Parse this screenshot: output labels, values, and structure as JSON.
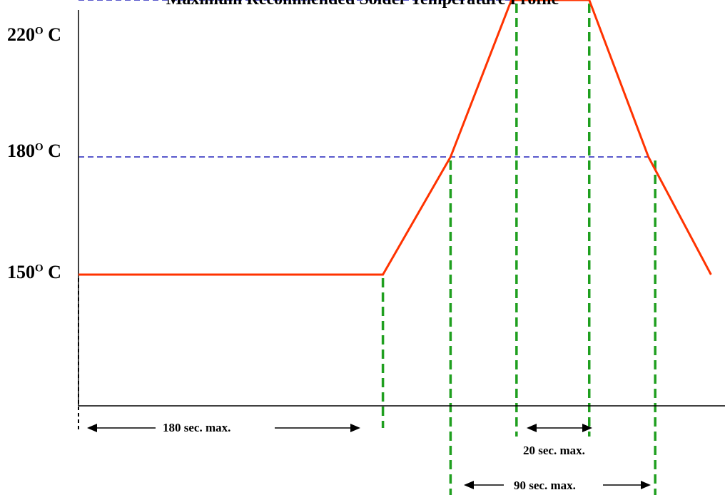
{
  "chart_data": {
    "type": "line",
    "title": "Maximum Recommended Solder Temperature Profile",
    "xlabel": "",
    "ylabel": "",
    "ylim": [
      110,
      225
    ],
    "y_ticks": [
      {
        "value": 150,
        "label": "150",
        "sup": "O",
        "unit": "C"
      },
      {
        "value": 180,
        "label": "180",
        "sup": "O",
        "unit": "C"
      },
      {
        "value": 220,
        "label": "220",
        "sup": "O",
        "unit": "C"
      }
    ],
    "series": [
      {
        "points": [
          [
            0,
            150
          ],
          [
            180,
            150
          ],
          [
            220,
            180
          ],
          [
            256,
            220
          ],
          [
            302,
            220
          ],
          [
            337,
            180
          ],
          [
            374,
            150
          ]
        ]
      }
    ],
    "reference_lines": [
      180,
      220
    ],
    "durations": [
      {
        "label": "180 sec. max.",
        "from": 0,
        "to": 180
      },
      {
        "label": "20 sec. max.",
        "from": 260,
        "to": 302
      },
      {
        "label": "90 sec. max.",
        "from": 222,
        "to": 340
      }
    ],
    "colors": {
      "profile": "#ff3300",
      "reference": "#2222bb",
      "markers": "#1f9f1f",
      "axis": "#000000"
    }
  }
}
